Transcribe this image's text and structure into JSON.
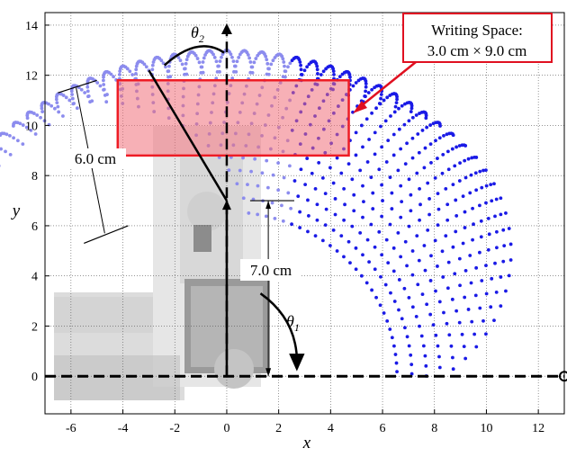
{
  "chart_data": {
    "type": "scatter",
    "xlabel": "x",
    "ylabel": "y",
    "xlim": [
      -7,
      13
    ],
    "ylim": [
      -1.5,
      14.5
    ],
    "xticks": [
      -6,
      -4,
      -2,
      0,
      2,
      4,
      6,
      8,
      10,
      12
    ],
    "yticks": [
      0,
      2,
      4,
      6,
      8,
      10,
      12,
      14
    ],
    "grid": true,
    "workspace": {
      "description": "Reachable endpoints of a two-link arm",
      "link1_length": 7.0,
      "link2_length": 6.0,
      "base": [
        0,
        0
      ]
    },
    "writing_space": {
      "x": [
        -4.2,
        4.7
      ],
      "y": [
        8.8,
        11.8
      ]
    },
    "colors": {
      "points_far": "#1a1ae6",
      "points_near": "#8c8cee",
      "rect_fill": "#f0707a",
      "rect_stroke": "#ee1c25",
      "callout": "#e01020"
    }
  },
  "annotations": {
    "writing_space_line1": "Writing Space:",
    "writing_space_line2": "3.0 cm × 9.0 cm",
    "link2_length_label": "6.0 cm",
    "link1_length_label": "7.0 cm",
    "theta1_symbol": "θ",
    "theta1_sub": "1",
    "theta2_symbol": "θ",
    "theta2_sub": "2"
  }
}
